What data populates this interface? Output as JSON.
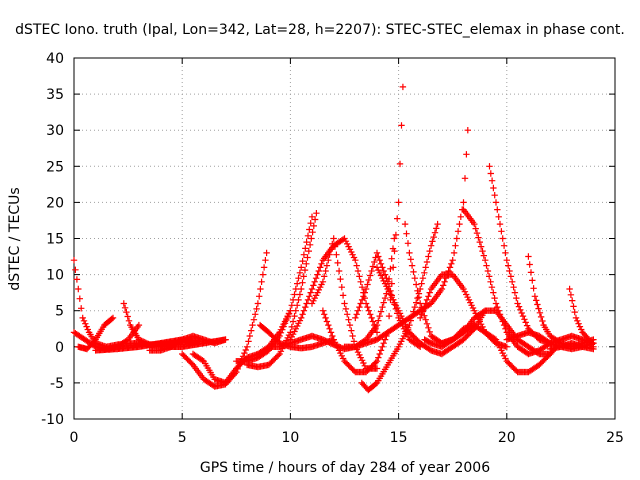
{
  "chart_data": {
    "type": "scatter",
    "title": "dSTEC Iono. truth (Ipal, Lon=342, Lat=28, h=2207): STEC-STEC_elemax in phase cont.",
    "xlabel": "GPS time / hours of day 284 of year 2006",
    "ylabel": "dSTEC  / TECUs",
    "xlim": [
      0,
      25
    ],
    "ylim": [
      -10,
      40
    ],
    "xticks": [
      0,
      5,
      10,
      15,
      20,
      25
    ],
    "yticks": [
      -10,
      -5,
      0,
      5,
      10,
      15,
      20,
      25,
      30,
      35,
      40
    ],
    "grid": true,
    "marker": "+",
    "colors": {
      "series": "#ff0000",
      "grid": "#a0a0a0",
      "axis": "#000000"
    },
    "series": [
      {
        "x": [
          0.0,
          0.2,
          0.4,
          0.7,
          1.0,
          1.5,
          2.0,
          2.8,
          3.5,
          4.5,
          5.5
        ],
        "y": [
          12,
          8,
          4,
          2,
          0.5,
          0,
          0.3,
          0.5,
          0.3,
          0.5,
          0.8
        ]
      },
      {
        "x": [
          0.0,
          0.5,
          1.0,
          1.5,
          2.0,
          2.5,
          3.0
        ],
        "y": [
          2,
          1,
          0,
          -0.3,
          0,
          1,
          3
        ]
      },
      {
        "x": [
          0.2,
          0.6,
          1.0,
          1.4,
          1.8
        ],
        "y": [
          0,
          -0.3,
          1,
          3,
          4
        ]
      },
      {
        "x": [
          2.3,
          2.6,
          3.0,
          3.5,
          4.0,
          5.0,
          6.0,
          7.0
        ],
        "y": [
          6,
          3,
          1,
          0.3,
          0,
          0,
          0.5,
          1
        ]
      },
      {
        "x": [
          1.0,
          2.0,
          3.0,
          4.0,
          5.0,
          5.8
        ],
        "y": [
          -0.5,
          -0.3,
          0,
          0.5,
          1,
          0.8
        ]
      },
      {
        "x": [
          3.5,
          4.0,
          4.5,
          5.0,
          5.5,
          6.0,
          6.5,
          7.0
        ],
        "y": [
          -0.5,
          -0.5,
          0,
          1,
          1.5,
          1,
          0.5,
          1
        ]
      },
      {
        "x": [
          5.0,
          5.5,
          6.0,
          6.5,
          7.0,
          7.5,
          8.0,
          8.5,
          8.9
        ],
        "y": [
          -1,
          -2.5,
          -4.5,
          -5.5,
          -5.2,
          -3.5,
          0,
          6,
          13
        ]
      },
      {
        "x": [
          5.5,
          6.0,
          6.5,
          7.0,
          7.5,
          8.0,
          8.5,
          9.0,
          9.5,
          10.0
        ],
        "y": [
          -1,
          -2,
          -4.5,
          -5,
          -3,
          -1.5,
          -1,
          0,
          2,
          5
        ]
      },
      {
        "x": [
          7.5,
          8.0,
          8.5,
          9.0,
          9.5,
          10.0,
          10.5,
          11.0
        ],
        "y": [
          -2,
          -2,
          -1.5,
          -0.5,
          1.5,
          5,
          11,
          18
        ]
      },
      {
        "x": [
          8.0,
          8.5,
          9.0,
          9.5,
          10.0,
          10.5,
          11.2
        ],
        "y": [
          -2.5,
          -2.8,
          -2.5,
          -1,
          2,
          8,
          18.5
        ]
      },
      {
        "x": [
          8.6,
          9.0,
          9.5,
          10.0,
          10.5,
          11.0,
          11.5,
          12.0
        ],
        "y": [
          3,
          2,
          0.5,
          0,
          -0.2,
          0,
          0.5,
          1
        ]
      },
      {
        "x": [
          9.0,
          9.5,
          10.0,
          10.5,
          11.0,
          11.5,
          12.0,
          12.5,
          13.0,
          13.5,
          14.0,
          14.5,
          14.8
        ],
        "y": [
          0,
          0,
          0.5,
          1,
          1.5,
          1,
          0.3,
          -0.3,
          0,
          1,
          3,
          8,
          15
        ]
      },
      {
        "x": [
          10.0,
          10.5,
          11.0,
          11.5,
          12.0,
          12.5,
          13.0,
          13.5,
          14.0
        ],
        "y": [
          1,
          4,
          8,
          12,
          14,
          15,
          12,
          6,
          2
        ]
      },
      {
        "x": [
          11.0,
          11.5,
          12.0,
          12.5,
          13.0,
          13.5,
          14.0
        ],
        "y": [
          6,
          9,
          15,
          6,
          0,
          -3,
          -3
        ]
      },
      {
        "x": [
          11.5,
          12.0,
          12.5,
          13.0,
          13.5,
          14.0,
          14.5,
          15.0,
          15.2
        ],
        "y": [
          5,
          1,
          -2,
          -3.5,
          -3.5,
          -2,
          2,
          20,
          36
        ]
      },
      {
        "x": [
          12.5,
          13.0,
          13.5,
          14.0,
          14.5,
          15.0,
          15.5,
          16.0,
          16.5,
          17.0,
          17.5,
          18.0,
          18.2
        ],
        "y": [
          0,
          0,
          0.5,
          1,
          2,
          3,
          4,
          5,
          6,
          8,
          12,
          20,
          30
        ]
      },
      {
        "x": [
          13.3,
          13.6,
          14.0,
          14.5,
          15.0,
          15.5,
          16.0,
          16.5,
          16.8
        ],
        "y": [
          -5,
          -6,
          -5,
          -2.5,
          0,
          3,
          8,
          14,
          17
        ]
      },
      {
        "x": [
          13.0,
          13.5,
          14.0,
          14.5,
          15.0,
          15.5,
          16.0
        ],
        "y": [
          4,
          8,
          13,
          9,
          4,
          1,
          0
        ]
      },
      {
        "x": [
          14.0,
          14.5,
          15.0,
          15.5,
          16.0,
          16.5,
          17.0,
          17.5,
          18.0,
          18.5,
          19.0
        ],
        "y": [
          11,
          8,
          5,
          2,
          0.5,
          -0.5,
          -1,
          0,
          1,
          2.5,
          5
        ]
      },
      {
        "x": [
          15.3,
          15.5,
          16.0,
          16.5,
          17.0,
          17.5,
          18.0,
          18.5
        ],
        "y": [
          17,
          13,
          6,
          1.5,
          0.5,
          1,
          2,
          3
        ]
      },
      {
        "x": [
          16.0,
          16.5,
          17.0,
          17.5,
          18.0,
          18.5,
          19.0,
          19.5,
          20.0
        ],
        "y": [
          4,
          8,
          10,
          10,
          8,
          5,
          2,
          0.5,
          0
        ]
      },
      {
        "x": [
          16.2,
          16.5,
          17.0,
          17.5,
          18.0,
          18.5,
          19.0,
          19.5
        ],
        "y": [
          1,
          0.5,
          0,
          1,
          2.5,
          3,
          2,
          0.5
        ]
      },
      {
        "x": [
          18.0,
          18.5,
          19.0,
          19.5,
          20.0,
          20.5,
          21.0,
          21.5,
          22.0
        ],
        "y": [
          19,
          17,
          12,
          6,
          2,
          0,
          -1,
          -0.5,
          0.5
        ]
      },
      {
        "x": [
          17.0,
          17.5,
          18.0,
          18.5,
          19.0,
          19.5,
          20.0,
          20.5,
          21.0,
          21.5,
          22.0
        ],
        "y": [
          0.5,
          1,
          2,
          4,
          5,
          5,
          3,
          1,
          0,
          -1,
          -1
        ]
      },
      {
        "x": [
          19.2,
          19.5,
          20.0,
          20.5,
          21.0,
          21.5,
          22.0,
          22.5,
          23.0,
          23.5,
          24.0
        ],
        "y": [
          25,
          20,
          12,
          6,
          2.5,
          1,
          0.5,
          1,
          1.5,
          1,
          0.5
        ]
      },
      {
        "x": [
          19.0,
          19.5,
          20.0,
          20.5,
          21.0,
          21.5,
          22.0,
          22.3
        ],
        "y": [
          2,
          1,
          -2,
          -3.5,
          -3.5,
          -2.5,
          -1,
          0
        ]
      },
      {
        "x": [
          21.0,
          21.3,
          21.7,
          22.0,
          22.5,
          23.0,
          23.5,
          24.0
        ],
        "y": [
          12.5,
          7,
          3,
          1.5,
          0.5,
          0,
          0.5,
          1
        ]
      },
      {
        "x": [
          20.0,
          20.5,
          21.0,
          21.5,
          22.0,
          22.5,
          23.0,
          23.5,
          24.0
        ],
        "y": [
          1,
          1.5,
          2,
          1.5,
          0.5,
          0,
          -0.3,
          0,
          0.5
        ]
      },
      {
        "x": [
          22.9,
          23.2,
          23.5,
          23.8,
          24.0
        ],
        "y": [
          8,
          4,
          2,
          1,
          0
        ]
      },
      {
        "x": [
          22.0,
          22.5,
          23.0,
          23.5,
          24.0
        ],
        "y": [
          -0.3,
          0,
          0.5,
          0,
          -0.3
        ]
      }
    ]
  }
}
